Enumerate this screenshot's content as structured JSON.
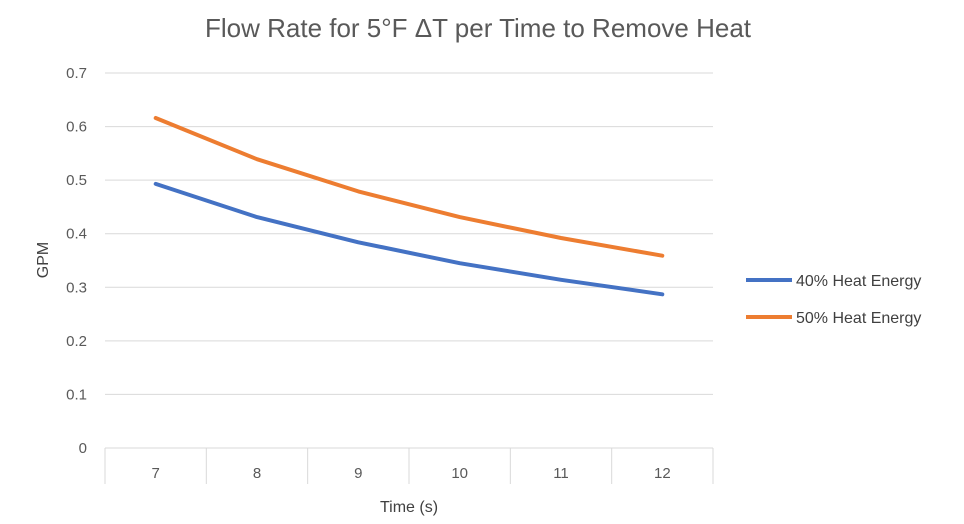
{
  "chart_data": {
    "type": "line",
    "title": "Flow Rate for 5°F ΔT per Time to Remove Heat",
    "xlabel": "Time (s)",
    "ylabel": "GPM",
    "x": [
      7,
      8,
      9,
      10,
      11,
      12
    ],
    "ylim": [
      0,
      0.7
    ],
    "yticks": [
      "0",
      "0.1",
      "0.2",
      "0.3",
      "0.4",
      "0.5",
      "0.6",
      "0.7"
    ],
    "grid": true,
    "legend_position": "right",
    "series": [
      {
        "name": "40% Heat Energy",
        "color": "#4472c4",
        "values": [
          0.493,
          0.431,
          0.384,
          0.345,
          0.314,
          0.287
        ]
      },
      {
        "name": "50% Heat Energy",
        "color": "#ed7d31",
        "values": [
          0.616,
          0.539,
          0.479,
          0.431,
          0.392,
          0.359
        ]
      }
    ]
  }
}
